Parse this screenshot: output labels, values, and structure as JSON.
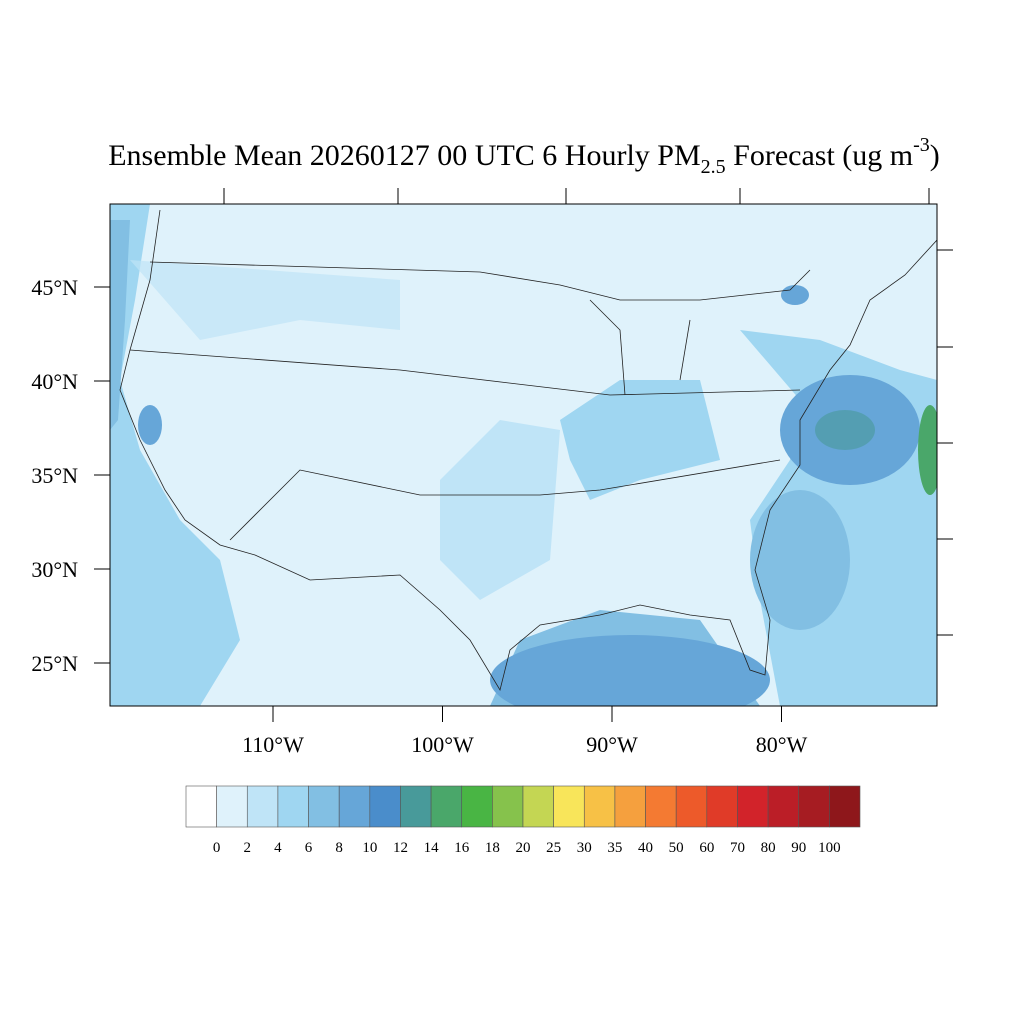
{
  "title": {
    "main": "Ensemble Mean 20260127 00 UTC 6 Hourly PM",
    "sub": "2.5",
    "mid": " Forecast (ug m",
    "sup": "-3",
    "end": ")"
  },
  "map": {
    "lat_labels": [
      "45°N",
      "40°N",
      "35°N",
      "30°N",
      "25°N"
    ],
    "lon_labels": [
      "110°W",
      "100°W",
      "90°W",
      "80°W"
    ]
  },
  "colorbar": {
    "levels": [
      0,
      2,
      4,
      6,
      8,
      10,
      12,
      14,
      16,
      18,
      20,
      25,
      30,
      35,
      40,
      50,
      60,
      70,
      80,
      90,
      100
    ],
    "colors": [
      "#ffffff",
      "#dff2fb",
      "#bfe4f7",
      "#9fd6f1",
      "#82bfe3",
      "#66a6d8",
      "#4a8dcb",
      "#489a9a",
      "#4aa76a",
      "#49b544",
      "#86c24c",
      "#c4d653",
      "#f8e55a",
      "#f7c146",
      "#f5a03e",
      "#f47a32",
      "#ed5a2a",
      "#e03b28",
      "#d2232a",
      "#bb1e27",
      "#a61c22",
      "#8e171b"
    ]
  }
}
